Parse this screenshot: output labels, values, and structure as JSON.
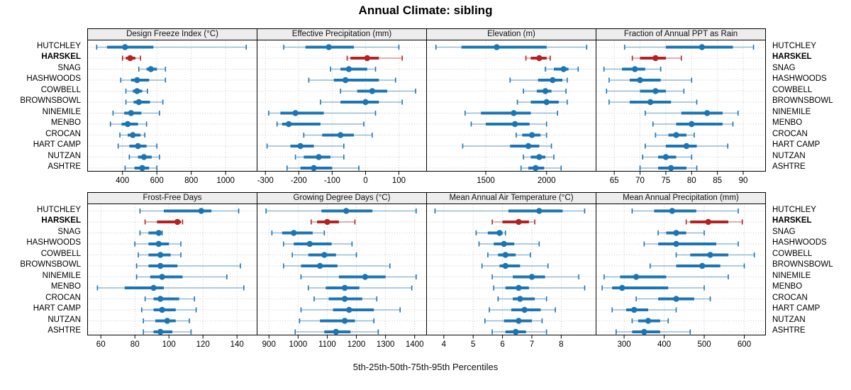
{
  "title": "Annual Climate: sibling",
  "caption": "5th-25th-50th-75th-95th Percentiles",
  "stations": [
    "HUTCHLEY",
    "HARSKEL",
    "SNAG",
    "HASHWOODS",
    "COWBELL",
    "BROWNSBOWL",
    "NINEMILE",
    "MENBO",
    "CROCAN",
    "HART CAMP",
    "NUTZAN",
    "ASHTRE"
  ],
  "highlight_station": "HARSKEL",
  "percentiles": [
    "5th",
    "25th",
    "50th",
    "75th",
    "95th"
  ],
  "colors": {
    "series": "#1b74b4",
    "highlight": "#b22222",
    "grid": "#c8c8c8",
    "strip_bg": "#ededed",
    "border": "#000000"
  },
  "chart_data": [
    {
      "type": "dotplot-intervals",
      "row": 1,
      "title": "Design Freeze Index (°C)",
      "xlim": [
        195,
        1185
      ],
      "ticks": [
        400,
        600,
        800,
        1000
      ],
      "tick_labels": [
        "400",
        "600",
        "800",
        "1000"
      ],
      "values": {
        "HUTCHLEY": [
          250,
          310,
          415,
          580,
          1120
        ],
        "HARSKEL": [
          400,
          420,
          445,
          475,
          505
        ],
        "SNAG": [
          495,
          540,
          565,
          600,
          650
        ],
        "HASHWOODS": [
          390,
          450,
          485,
          555,
          650
        ],
        "COWBELL": [
          420,
          460,
          485,
          515,
          545
        ],
        "BROWNSBOWL": [
          420,
          465,
          495,
          560,
          635
        ],
        "NINEMILE": [
          345,
          410,
          450,
          510,
          615
        ],
        "MENBO": [
          330,
          395,
          430,
          490,
          540
        ],
        "CROCAN": [
          385,
          430,
          460,
          505,
          530
        ],
        "HART CAMP": [
          375,
          440,
          490,
          540,
          600
        ],
        "NUTZAN": [
          440,
          490,
          525,
          570,
          615
        ],
        "ASHTRE": [
          415,
          470,
          515,
          555,
          600
        ]
      }
    },
    {
      "type": "dotplot-intervals",
      "row": 1,
      "title": "Effective Precipitation (mm)",
      "xlim": [
        -326,
        184
      ],
      "ticks": [
        -300,
        -200,
        -100,
        0,
        100
      ],
      "tick_labels": [
        "-300",
        "-200",
        "-100",
        "0",
        "100"
      ],
      "values": {
        "HUTCHLEY": [
          -245,
          -180,
          -110,
          -35,
          100
        ],
        "HARSKEL": [
          -55,
          -45,
          5,
          40,
          110
        ],
        "SNAG": [
          -105,
          -75,
          -50,
          5,
          30
        ],
        "HASHWOODS": [
          -170,
          -95,
          -60,
          40,
          90
        ],
        "COWBELL": [
          -75,
          -25,
          20,
          65,
          150
        ],
        "BROWNSBOWL": [
          -135,
          -75,
          0,
          40,
          110
        ],
        "NINEMILE": [
          -290,
          -255,
          -210,
          -125,
          30
        ],
        "MENBO": [
          -265,
          -250,
          -230,
          -135,
          -5
        ],
        "CROCAN": [
          -185,
          -130,
          -75,
          -35,
          20
        ],
        "HART CAMP": [
          -295,
          -225,
          -195,
          -155,
          -65
        ],
        "NUTZAN": [
          -210,
          -185,
          -140,
          -105,
          -65
        ],
        "ASHTRE": [
          -235,
          -195,
          -155,
          -100,
          -20
        ]
      }
    },
    {
      "type": "dotplot-intervals",
      "row": 1,
      "title": "Elevation (m)",
      "xlim": [
        1010,
        2410
      ],
      "ticks": [
        1500,
        2000
      ],
      "tick_labels": [
        "1500",
        "2000"
      ],
      "values": {
        "HUTCHLEY": [
          1090,
          1300,
          1590,
          2000,
          2330
        ],
        "HARSKEL": [
          1830,
          1870,
          1940,
          2000,
          2030
        ],
        "SNAG": [
          1990,
          2060,
          2140,
          2180,
          2260
        ],
        "HASHWOODS": [
          1700,
          1930,
          2050,
          2130,
          2170
        ],
        "COWBELL": [
          1810,
          1920,
          1990,
          2040,
          2160
        ],
        "BROWNSBOWL": [
          1760,
          1870,
          2000,
          2100,
          2170
        ],
        "NINEMILE": [
          1330,
          1460,
          1730,
          1870,
          2090
        ],
        "MENBO": [
          1380,
          1500,
          1740,
          1860,
          2000
        ],
        "CROCAN": [
          1750,
          1800,
          1880,
          1950,
          2000
        ],
        "HART CAMP": [
          1310,
          1700,
          1850,
          1940,
          2040
        ],
        "NUTZAN": [
          1810,
          1870,
          1940,
          1990,
          2060
        ],
        "ASHTRE": [
          1790,
          1850,
          1910,
          1980,
          2120
        ]
      }
    },
    {
      "type": "dotplot-intervals",
      "row": 1,
      "title": "Fraction of Annual PPT as Rain",
      "xlim": [
        61.4,
        94.4
      ],
      "ticks": [
        65,
        70,
        75,
        80,
        85,
        90
      ],
      "tick_labels": [
        "65",
        "70",
        "75",
        "80",
        "85",
        "90"
      ],
      "values": {
        "HUTCHLEY": [
          67,
          75,
          82,
          88,
          92
        ],
        "HARSKEL": [
          68.5,
          70,
          73,
          75,
          78
        ],
        "SNAG": [
          63,
          66.5,
          69,
          71,
          74
        ],
        "HASHWOODS": [
          64,
          68,
          70,
          74,
          80
        ],
        "COWBELL": [
          63.5,
          70,
          73,
          75,
          78.5
        ],
        "BROWNSBOWL": [
          64,
          68,
          72,
          76,
          81
        ],
        "NINEMILE": [
          71,
          78,
          83,
          86,
          89
        ],
        "MENBO": [
          72.5,
          77,
          80,
          86,
          88
        ],
        "CROCAN": [
          73,
          75.5,
          77,
          79,
          80.5
        ],
        "HART CAMP": [
          71,
          75,
          79,
          81,
          87
        ],
        "NUTZAN": [
          70.5,
          73.5,
          75,
          77,
          80
        ],
        "ASHTRE": [
          70,
          73.5,
          76,
          79,
          81
        ]
      }
    },
    {
      "type": "dotplot-intervals",
      "row": 2,
      "title": "Frost-Free Days",
      "xlim": [
        52,
        152
      ],
      "ticks": [
        60,
        80,
        100,
        120,
        140
      ],
      "tick_labels": [
        "60",
        "80",
        "100",
        "120",
        "140"
      ],
      "values": {
        "HUTCHLEY": [
          83,
          97,
          119,
          125,
          141
        ],
        "HARSKEL": [
          86,
          93,
          105,
          107,
          108
        ],
        "SNAG": [
          83,
          88,
          94,
          95,
          96
        ],
        "HASHWOODS": [
          80,
          88,
          94,
          100,
          107
        ],
        "COWBELL": [
          82,
          88,
          95,
          101,
          107
        ],
        "BROWNSBOWL": [
          81,
          88,
          95,
          105,
          142
        ],
        "NINEMILE": [
          81,
          89,
          96,
          108,
          134
        ],
        "MENBO": [
          58,
          74,
          91,
          97,
          144
        ],
        "CROCAN": [
          86,
          91,
          95,
          106,
          115
        ],
        "HART CAMP": [
          84,
          91,
          96,
          104,
          116
        ],
        "NUTZAN": [
          85,
          92,
          99,
          104,
          112
        ],
        "ASHTRE": [
          85,
          91,
          95,
          102,
          113
        ]
      }
    },
    {
      "type": "dotplot-intervals",
      "row": 2,
      "title": "Growing Degree Days (°C)",
      "xlim": [
        858,
        1442
      ],
      "ticks": [
        900,
        1000,
        1100,
        1200,
        1300,
        1400
      ],
      "tick_labels": [
        "900",
        "1000",
        "1100",
        "1200",
        "1300",
        "1400"
      ],
      "values": {
        "HUTCHLEY": [
          890,
          1080,
          1165,
          1255,
          1405
        ],
        "HARSKEL": [
          1045,
          1065,
          1100,
          1140,
          1195
        ],
        "SNAG": [
          910,
          945,
          985,
          1050,
          1090
        ],
        "HASHWOODS": [
          950,
          985,
          1040,
          1115,
          1185
        ],
        "COWBELL": [
          980,
          1035,
          1090,
          1130,
          1200
        ],
        "BROWNSBOWL": [
          950,
          1010,
          1075,
          1135,
          1315
        ],
        "NINEMILE": [
          1010,
          1140,
          1230,
          1300,
          1405
        ],
        "MENBO": [
          1035,
          1095,
          1160,
          1210,
          1390
        ],
        "CROCAN": [
          1055,
          1105,
          1160,
          1220,
          1270
        ],
        "HART CAMP": [
          1010,
          1120,
          1175,
          1260,
          1350
        ],
        "NUTZAN": [
          1005,
          1075,
          1160,
          1195,
          1260
        ],
        "ASHTRE": [
          990,
          1090,
          1130,
          1180,
          1275
        ]
      }
    },
    {
      "type": "dotplot-intervals",
      "row": 2,
      "title": "Mean Annual Air Temperature (°C)",
      "xlim": [
        3.4,
        9.2
      ],
      "ticks": [
        4,
        5,
        6,
        7,
        8
      ],
      "tick_labels": [
        "4",
        "5",
        "6",
        "7",
        "8"
      ],
      "values": {
        "HUTCHLEY": [
          3.7,
          6.2,
          7.25,
          8.05,
          8.8
        ],
        "HARSKEL": [
          5.65,
          6.0,
          6.55,
          6.9,
          7.1
        ],
        "SNAG": [
          5.1,
          5.5,
          5.9,
          6.0,
          6.1
        ],
        "HASHWOODS": [
          5.2,
          5.7,
          6.05,
          6.4,
          7.25
        ],
        "COWBELL": [
          5.5,
          5.85,
          6.1,
          6.45,
          6.95
        ],
        "BROWNSBOWL": [
          5.3,
          5.9,
          6.1,
          6.6,
          7.55
        ],
        "NINEMILE": [
          5.65,
          6.35,
          7.0,
          7.45,
          8.6
        ],
        "MENBO": [
          5.7,
          6.1,
          6.55,
          6.9,
          8.8
        ],
        "CROCAN": [
          5.85,
          6.35,
          6.6,
          7.1,
          7.5
        ],
        "HART CAMP": [
          5.55,
          6.3,
          6.75,
          7.3,
          7.8
        ],
        "NUTZAN": [
          5.4,
          6.05,
          6.55,
          7.0,
          7.35
        ],
        "ASHTRE": [
          5.65,
          6.1,
          6.45,
          6.8,
          7.5
        ]
      }
    },
    {
      "type": "dotplot-intervals",
      "row": 2,
      "title": "Mean Annual Precipitation (mm)",
      "xlim": [
        229,
        654
      ],
      "ticks": [
        300,
        400,
        500,
        600
      ],
      "tick_labels": [
        "300",
        "400",
        "500",
        "600"
      ],
      "values": {
        "HUTCHLEY": [
          320,
          375,
          420,
          480,
          585
        ],
        "HARSKEL": [
          455,
          465,
          510,
          560,
          595
        ],
        "SNAG": [
          385,
          405,
          430,
          455,
          500
        ],
        "HASHWOODS": [
          350,
          385,
          430,
          530,
          585
        ],
        "COWBELL": [
          430,
          465,
          515,
          560,
          625
        ],
        "BROWNSBOWL": [
          365,
          430,
          495,
          540,
          600
        ],
        "NINEMILE": [
          250,
          290,
          330,
          405,
          560
        ],
        "MENBO": [
          245,
          270,
          295,
          410,
          500
        ],
        "CROCAN": [
          330,
          385,
          430,
          475,
          515
        ],
        "HART CAMP": [
          270,
          305,
          325,
          360,
          430
        ],
        "NUTZAN": [
          320,
          335,
          360,
          390,
          410
        ],
        "ASHTRE": [
          280,
          320,
          350,
          390,
          465
        ]
      }
    }
  ]
}
